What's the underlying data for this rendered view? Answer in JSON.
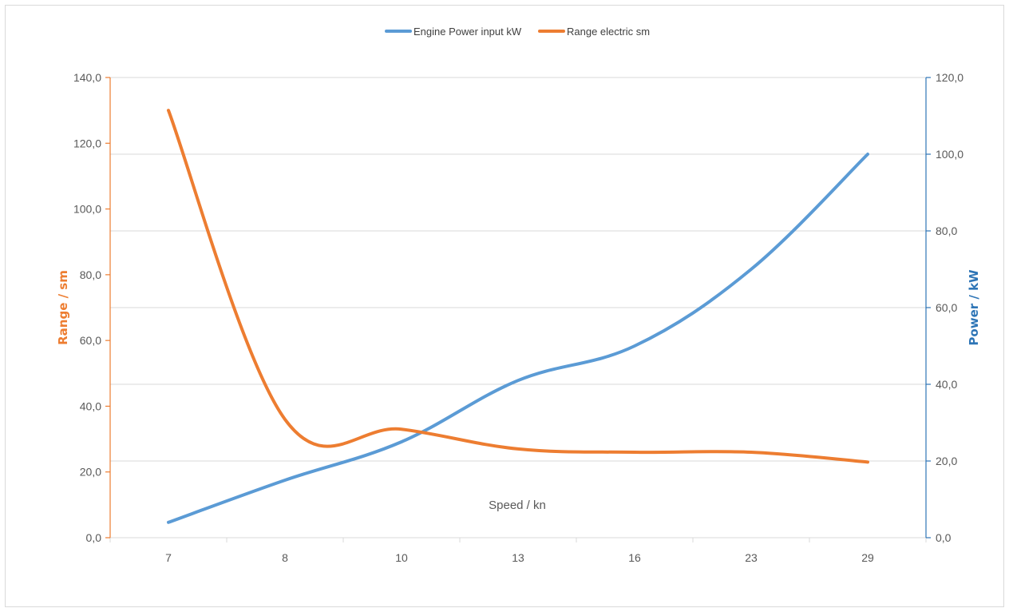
{
  "chart_data": {
    "type": "line",
    "title": "",
    "categories": [
      "7",
      "8",
      "10",
      "13",
      "16",
      "23",
      "29"
    ],
    "xlabel": "Speed / kn",
    "y_left": {
      "label": "Range / sm",
      "min": 0,
      "max": 140,
      "step": 20,
      "ticks": [
        "0,0",
        "20,0",
        "40,0",
        "60,0",
        "80,0",
        "100,0",
        "120,0",
        "140,0"
      ],
      "color": "#ED7D31"
    },
    "y_right": {
      "label": "Power / kW",
      "min": 0,
      "max": 120,
      "step": 20,
      "ticks": [
        "0,0",
        "20,0",
        "40,0",
        "60,0",
        "80,0",
        "100,0",
        "120,0"
      ],
      "color": "#2E75B6"
    },
    "series": [
      {
        "name": "Engine Power input kW",
        "axis": "right",
        "color": "#5B9BD5",
        "values": [
          4,
          15,
          25,
          41,
          50,
          70,
          100
        ]
      },
      {
        "name": "Range electric sm",
        "axis": "left",
        "color": "#ED7D31",
        "values": [
          130,
          36,
          33,
          27,
          26,
          26,
          23
        ]
      }
    ],
    "grid": true,
    "legend_position": "top-center"
  }
}
